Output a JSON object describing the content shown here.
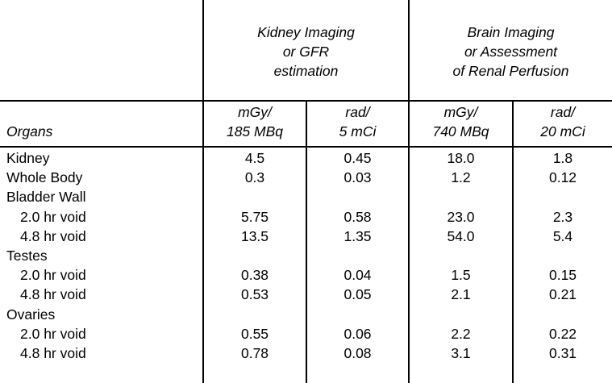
{
  "header": {
    "groups": [
      {
        "lines": [
          "Kidney Imaging",
          "or GFR",
          "estimation"
        ]
      },
      {
        "lines": [
          "Brain Imaging",
          "or Assessment",
          "of Renal Perfusion"
        ]
      }
    ],
    "organs_label": "Organs",
    "units": [
      {
        "lines": [
          "mGy/",
          "185 MBq"
        ]
      },
      {
        "lines": [
          "rad/",
          "5 mCi"
        ]
      },
      {
        "lines": [
          "mGy/",
          "740 MBq"
        ]
      },
      {
        "lines": [
          "rad/",
          "20 mCi"
        ]
      }
    ]
  },
  "rows": [
    {
      "organ": "Kidney",
      "values": [
        "4.5",
        "0.45",
        "18.0",
        "1.8"
      ]
    },
    {
      "organ": "Whole Body",
      "values": [
        "0.3",
        "0.03",
        "1.2",
        "0.12"
      ]
    },
    {
      "organ": "Bladder Wall",
      "values": [
        "",
        "",
        "",
        ""
      ]
    },
    {
      "organ": "2.0 hr void",
      "values": [
        "5.75",
        "0.58",
        "23.0",
        "2.3"
      ]
    },
    {
      "organ": "4.8 hr void",
      "values": [
        "13.5",
        "1.35",
        "54.0",
        "5.4"
      ]
    },
    {
      "organ": "Testes",
      "values": [
        "",
        "",
        "",
        ""
      ]
    },
    {
      "organ": "2.0 hr void",
      "values": [
        "0.38",
        "0.04",
        "1.5",
        "0.15"
      ]
    },
    {
      "organ": "4.8 hr void",
      "values": [
        "0.53",
        "0.05",
        "2.1",
        "0.21"
      ]
    },
    {
      "organ": "Ovaries",
      "values": [
        "",
        "",
        "",
        ""
      ]
    },
    {
      "organ": "2.0 hr void",
      "values": [
        "0.55",
        "0.06",
        "2.2",
        "0.22"
      ]
    },
    {
      "organ": "4.8 hr void",
      "values": [
        "0.78",
        "0.08",
        "3.1",
        "0.31"
      ]
    }
  ]
}
